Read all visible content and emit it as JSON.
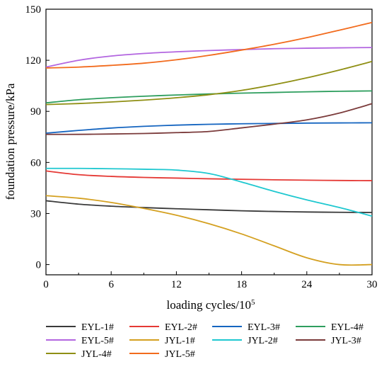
{
  "chart_data": {
    "type": "line",
    "title": "",
    "xlabel": "loading cycles/10",
    "xlabel_exponent": "5",
    "ylabel": "foundation pressure/kPa",
    "xlim": [
      0,
      30
    ],
    "ylim": [
      -6,
      150
    ],
    "xticks": [
      0,
      6,
      12,
      18,
      24,
      30
    ],
    "yticks": [
      0,
      30,
      60,
      90,
      120,
      150
    ],
    "grid": false,
    "legend_position": "bottom",
    "series": [
      {
        "name": "EYL-1#",
        "color": "#3a3a3a",
        "x": [
          0,
          3,
          6,
          9,
          12,
          15,
          18,
          21,
          24,
          27,
          30
        ],
        "y": [
          37.5,
          35.5,
          34.3,
          33.5,
          32.8,
          32.2,
          31.6,
          31.2,
          30.9,
          30.7,
          30.6
        ]
      },
      {
        "name": "EYL-2#",
        "color": "#e53935",
        "x": [
          0,
          3,
          6,
          9,
          12,
          15,
          18,
          21,
          24,
          27,
          30
        ],
        "y": [
          55,
          52.8,
          51.8,
          51.2,
          50.8,
          50.4,
          50.1,
          49.8,
          49.6,
          49.4,
          49.3
        ]
      },
      {
        "name": "EYL-3#",
        "color": "#1565c0",
        "x": [
          0,
          3,
          6,
          9,
          12,
          15,
          18,
          21,
          24,
          27,
          30
        ],
        "y": [
          77.2,
          78.8,
          80.2,
          81.2,
          81.9,
          82.4,
          82.7,
          82.9,
          83.1,
          83.2,
          83.3
        ]
      },
      {
        "name": "EYL-4#",
        "color": "#2e9e5e",
        "x": [
          0,
          3,
          6,
          9,
          12,
          15,
          18,
          21,
          24,
          27,
          30
        ],
        "y": [
          95,
          96.8,
          98,
          98.9,
          99.6,
          100.2,
          100.7,
          101.1,
          101.5,
          101.8,
          102
        ]
      },
      {
        "name": "EYL-5#",
        "color": "#b366e0",
        "x": [
          0,
          3,
          6,
          9,
          12,
          15,
          18,
          21,
          24,
          27,
          30
        ],
        "y": [
          116,
          120,
          122.5,
          124,
          125,
          125.7,
          126.3,
          126.8,
          127.1,
          127.3,
          127.5
        ]
      },
      {
        "name": "JYL-1#",
        "color": "#d4a020",
        "x": [
          0,
          3,
          6,
          9,
          12,
          15,
          18,
          21,
          24,
          27,
          30
        ],
        "y": [
          40.5,
          39,
          36.5,
          33,
          29,
          24,
          18,
          11,
          4,
          0,
          0
        ]
      },
      {
        "name": "JYL-2#",
        "color": "#1fc8d0",
        "x": [
          0,
          3,
          6,
          9,
          12,
          15,
          18,
          21,
          24,
          27,
          30
        ],
        "y": [
          56.5,
          56.5,
          56.3,
          56,
          55.5,
          53.5,
          48.5,
          43,
          38,
          33.5,
          28.5
        ]
      },
      {
        "name": "JYL-3#",
        "color": "#7b3b3b",
        "x": [
          0,
          3,
          6,
          9,
          12,
          15,
          18,
          21,
          24,
          27,
          30
        ],
        "y": [
          76.5,
          76.5,
          76.7,
          77,
          77.5,
          78.2,
          80.3,
          82.5,
          85,
          89,
          94.5
        ]
      },
      {
        "name": "JYL-4#",
        "color": "#8f8f14",
        "x": [
          0,
          3,
          6,
          9,
          12,
          15,
          18,
          21,
          24,
          27,
          30
        ],
        "y": [
          94,
          94.6,
          95.5,
          96.6,
          98,
          99.8,
          102.3,
          105.7,
          109.7,
          114.3,
          119.3
        ]
      },
      {
        "name": "JYL-5#",
        "color": "#f26b1d",
        "x": [
          0,
          3,
          6,
          9,
          12,
          15,
          18,
          21,
          24,
          27,
          30
        ],
        "y": [
          115.5,
          116,
          117,
          118.3,
          120.3,
          122.9,
          126,
          129.4,
          133.3,
          137.7,
          142.2
        ]
      }
    ]
  }
}
